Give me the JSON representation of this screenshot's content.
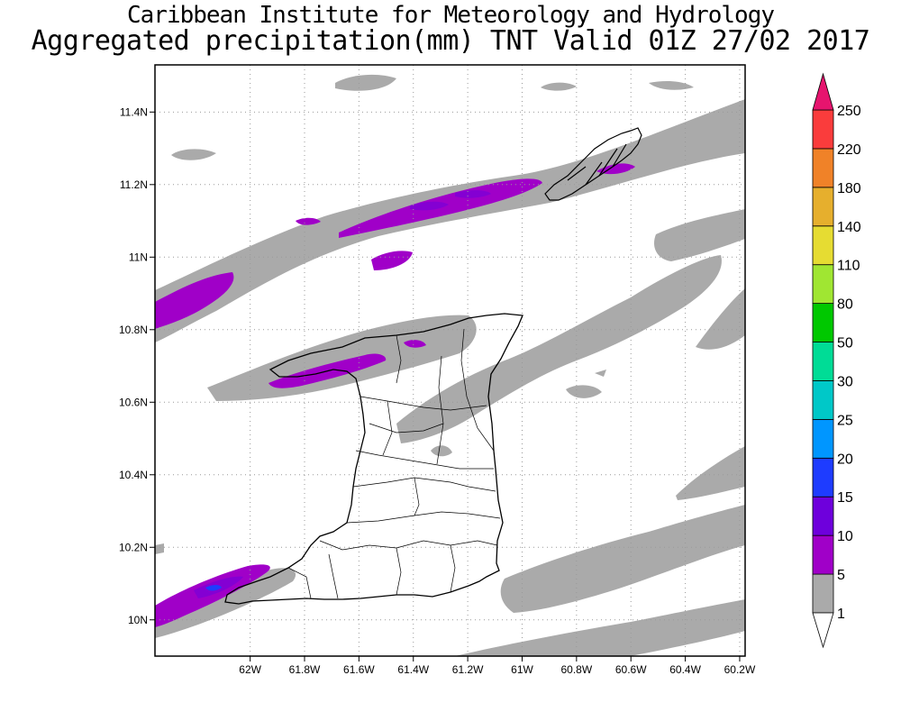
{
  "header": {
    "line1": "Caribbean Institute for Meteorology and Hydrology",
    "line2": "Aggregated precipitation(mm) TNT Valid 01Z 27/02 2017"
  },
  "map": {
    "lon_range": [
      -62.35,
      -60.18
    ],
    "lat_range": [
      9.9,
      11.53
    ],
    "lon_ticks": [
      {
        "v": -62.0,
        "label": "62W"
      },
      {
        "v": -61.8,
        "label": "61.8W"
      },
      {
        "v": -61.6,
        "label": "61.6W"
      },
      {
        "v": -61.4,
        "label": "61.4W"
      },
      {
        "v": -61.2,
        "label": "61.2W"
      },
      {
        "v": -61.0,
        "label": "61W"
      },
      {
        "v": -60.8,
        "label": "60.8W"
      },
      {
        "v": -60.6,
        "label": "60.6W"
      },
      {
        "v": -60.4,
        "label": "60.4W"
      },
      {
        "v": -60.2,
        "label": "60.2W"
      }
    ],
    "lat_ticks": [
      {
        "v": 10.0,
        "label": "10N"
      },
      {
        "v": 10.2,
        "label": "10.2N"
      },
      {
        "v": 10.4,
        "label": "10.4N"
      },
      {
        "v": 10.6,
        "label": "10.6N"
      },
      {
        "v": 10.8,
        "label": "10.8N"
      },
      {
        "v": 11.0,
        "label": "11N"
      },
      {
        "v": 11.2,
        "label": "11.2N"
      },
      {
        "v": 11.4,
        "label": "11.4N"
      }
    ],
    "grid": true
  },
  "legend": {
    "levels": [
      "1",
      "5",
      "10",
      "15",
      "20",
      "25",
      "30",
      "50",
      "80",
      "110",
      "140",
      "180",
      "220",
      "250"
    ],
    "colors": [
      "#aaaaaa",
      "#a000c8",
      "#6e00dc",
      "#1e3cff",
      "#0096ff",
      "#00c8c8",
      "#00dc96",
      "#00c800",
      "#a0e632",
      "#e6dc32",
      "#e6af2d",
      "#f08228",
      "#fa3c3c",
      "#e6146e"
    ],
    "lower_color": "#ffffff",
    "upper_color": "#e6146e"
  }
}
